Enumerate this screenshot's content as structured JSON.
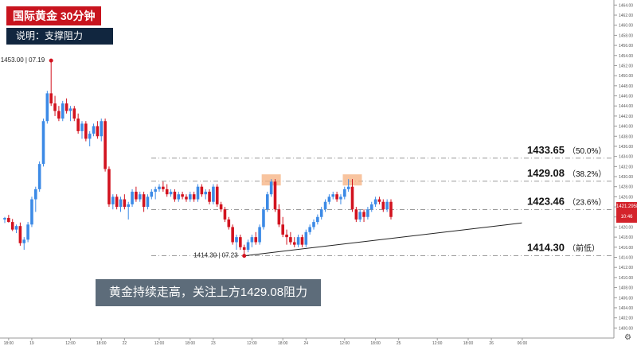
{
  "header": {
    "title": "国际黄金  30分钟",
    "subtitle": "说明：支撑阻力"
  },
  "comment": "黄金持续走高，关注上方1429.08阻力",
  "price_tags": [
    "1421.2958",
    "10:46"
  ],
  "colors": {
    "up": "#3c8ae6",
    "down": "#d2131f",
    "level_line": "#7a7a7a",
    "trend_line": "#222222",
    "highlight": "#f5b07f"
  },
  "chart_data": {
    "type": "candlestick",
    "ylim": [
      1398,
      1465
    ],
    "y_ticks": [
      "1464.00",
      "1462.00",
      "1460.00",
      "1458.00",
      "1456.00",
      "1454.00",
      "1452.00",
      "1450.00",
      "1448.00",
      "1446.00",
      "1444.00",
      "1442.00",
      "1440.00",
      "1438.00",
      "1436.00",
      "1434.00",
      "1432.00",
      "1430.00",
      "1428.00",
      "1426.00",
      "1424.00",
      "1422.00",
      "1420.00",
      "1418.00",
      "1416.00",
      "1414.00",
      "1412.00",
      "1410.00",
      "1408.00",
      "1406.00",
      "1404.00",
      "1402.00",
      "1400.00"
    ],
    "y_tick_values": [
      1464,
      1462,
      1460,
      1458,
      1456,
      1454,
      1452,
      1450,
      1448,
      1446,
      1444,
      1442,
      1440,
      1438,
      1436,
      1434,
      1432,
      1430,
      1428,
      1426,
      1424,
      1422,
      1420,
      1418,
      1416,
      1414,
      1412,
      1410,
      1408,
      1406,
      1404,
      1402,
      1400
    ],
    "x_ticks": [
      "18:00",
      "19",
      "12:00",
      "18:00",
      "22",
      "12:00",
      "18:00",
      "23",
      "12:00",
      "18:00",
      "24",
      "12:00",
      "18:00",
      "25",
      "12:00",
      "18:00",
      "26",
      "06:00"
    ],
    "x_tick_index": [
      1,
      7,
      17,
      25,
      31,
      40,
      48,
      54,
      64,
      72,
      78,
      88,
      96,
      102,
      112,
      120,
      126,
      134
    ],
    "levels": [
      {
        "price": 1433.65,
        "label": "1433.65",
        "pct": "（50.0%）"
      },
      {
        "price": 1429.08,
        "label": "1429.08",
        "pct": "（38.2%）"
      },
      {
        "price": 1423.46,
        "label": "1423.46",
        "pct": "（23.6%）"
      },
      {
        "price": 1414.3,
        "label": "1414.30",
        "pct": "（前低）"
      }
    ],
    "high_marker": {
      "index": 12,
      "price": 1453.0,
      "label": "1453.00 | 07.19"
    },
    "low_marker": {
      "index": 62,
      "price": 1414.3,
      "label": "1414.30 | 07.23"
    },
    "trendline": {
      "from_index": 62,
      "from_price": 1414.3,
      "to_index": 104,
      "to_price": 1420.5
    },
    "highlights": [
      {
        "index": 69,
        "price": 1429.5
      },
      {
        "index": 90,
        "price": 1429.5
      }
    ],
    "candles": [
      [
        1421.5,
        1422.0,
        1420.8,
        1421.8
      ],
      [
        1421.8,
        1422.4,
        1420.9,
        1421.0
      ],
      [
        1421.0,
        1421.6,
        1419.2,
        1419.5
      ],
      [
        1419.5,
        1420.5,
        1418.8,
        1420.2
      ],
      [
        1420.2,
        1420.9,
        1416.3,
        1416.8
      ],
      [
        1416.8,
        1418.0,
        1415.5,
        1417.5
      ],
      [
        1417.5,
        1421.0,
        1417.0,
        1420.5
      ],
      [
        1420.5,
        1426.0,
        1420.0,
        1425.5
      ],
      [
        1425.5,
        1428.0,
        1423.0,
        1427.5
      ],
      [
        1427.5,
        1433.0,
        1427.0,
        1432.5
      ],
      [
        1432.5,
        1441.5,
        1432.0,
        1441.0
      ],
      [
        1441.0,
        1447.0,
        1440.5,
        1446.5
      ],
      [
        1446.5,
        1453.0,
        1444.0,
        1444.5
      ],
      [
        1444.5,
        1446.0,
        1442.0,
        1443.0
      ],
      [
        1443.0,
        1444.0,
        1441.0,
        1441.5
      ],
      [
        1441.5,
        1445.0,
        1441.0,
        1444.5
      ],
      [
        1444.5,
        1445.5,
        1442.5,
        1443.0
      ],
      [
        1443.0,
        1444.0,
        1441.0,
        1443.5
      ],
      [
        1443.5,
        1444.0,
        1441.0,
        1441.5
      ],
      [
        1441.5,
        1442.5,
        1438.5,
        1439.0
      ],
      [
        1439.0,
        1441.0,
        1437.5,
        1440.5
      ],
      [
        1440.5,
        1441.0,
        1437.0,
        1437.5
      ],
      [
        1437.5,
        1439.0,
        1436.0,
        1438.5
      ],
      [
        1438.5,
        1440.5,
        1438.0,
        1440.0
      ],
      [
        1440.0,
        1441.0,
        1437.5,
        1438.0
      ],
      [
        1438.0,
        1441.5,
        1437.0,
        1441.0
      ],
      [
        1441.0,
        1441.5,
        1431.0,
        1431.5
      ],
      [
        1431.5,
        1432.0,
        1424.0,
        1424.5
      ],
      [
        1424.5,
        1426.5,
        1423.5,
        1426.0
      ],
      [
        1426.0,
        1426.5,
        1423.5,
        1424.0
      ],
      [
        1424.0,
        1426.0,
        1423.0,
        1425.5
      ],
      [
        1425.5,
        1426.5,
        1423.5,
        1424.0
      ],
      [
        1424.0,
        1425.0,
        1421.5,
        1424.5
      ],
      [
        1424.5,
        1427.5,
        1424.0,
        1427.0
      ],
      [
        1427.0,
        1428.0,
        1425.0,
        1425.5
      ],
      [
        1425.5,
        1427.0,
        1425.0,
        1426.5
      ],
      [
        1426.5,
        1427.0,
        1423.0,
        1424.0
      ],
      [
        1424.0,
        1426.5,
        1423.5,
        1426.0
      ],
      [
        1426.0,
        1427.5,
        1425.5,
        1427.0
      ],
      [
        1427.0,
        1428.0,
        1425.5,
        1427.5
      ],
      [
        1427.5,
        1428.5,
        1427.0,
        1428.0
      ],
      [
        1428.0,
        1429.0,
        1427.0,
        1427.5
      ],
      [
        1427.5,
        1428.5,
        1426.0,
        1426.5
      ],
      [
        1426.5,
        1427.5,
        1426.0,
        1427.0
      ],
      [
        1427.0,
        1427.5,
        1425.0,
        1425.5
      ],
      [
        1425.5,
        1427.0,
        1425.0,
        1426.5
      ],
      [
        1426.5,
        1427.0,
        1425.5,
        1426.0
      ],
      [
        1426.0,
        1426.5,
        1425.0,
        1425.5
      ],
      [
        1425.5,
        1427.0,
        1425.0,
        1426.5
      ],
      [
        1426.5,
        1427.0,
        1425.0,
        1425.5
      ],
      [
        1425.5,
        1428.5,
        1425.0,
        1428.0
      ],
      [
        1428.0,
        1428.5,
        1426.0,
        1426.5
      ],
      [
        1426.5,
        1427.5,
        1425.5,
        1427.0
      ],
      [
        1427.0,
        1427.5,
        1424.5,
        1425.0
      ],
      [
        1425.0,
        1428.5,
        1424.5,
        1428.0
      ],
      [
        1428.0,
        1428.5,
        1424.0,
        1424.5
      ],
      [
        1424.5,
        1425.0,
        1423.0,
        1423.5
      ],
      [
        1423.5,
        1424.0,
        1421.0,
        1421.5
      ],
      [
        1421.5,
        1422.0,
        1419.5,
        1420.0
      ],
      [
        1420.0,
        1420.5,
        1416.5,
        1417.0
      ],
      [
        1417.0,
        1418.5,
        1415.5,
        1418.0
      ],
      [
        1418.0,
        1418.5,
        1415.5,
        1416.0
      ],
      [
        1416.0,
        1416.5,
        1414.3,
        1415.5
      ],
      [
        1415.5,
        1417.5,
        1415.0,
        1417.0
      ],
      [
        1417.0,
        1418.5,
        1416.0,
        1418.0
      ],
      [
        1418.0,
        1419.0,
        1416.5,
        1417.0
      ],
      [
        1417.0,
        1420.5,
        1416.5,
        1420.0
      ],
      [
        1420.0,
        1424.0,
        1419.5,
        1423.5
      ],
      [
        1423.5,
        1427.0,
        1423.0,
        1426.5
      ],
      [
        1426.5,
        1429.5,
        1426.0,
        1429.0
      ],
      [
        1429.0,
        1429.5,
        1423.0,
        1423.5
      ],
      [
        1423.5,
        1424.5,
        1420.0,
        1420.5
      ],
      [
        1420.5,
        1422.0,
        1418.0,
        1418.5
      ],
      [
        1418.5,
        1419.5,
        1416.5,
        1418.0
      ],
      [
        1418.0,
        1419.0,
        1416.5,
        1417.0
      ],
      [
        1417.0,
        1418.0,
        1416.0,
        1416.5
      ],
      [
        1416.5,
        1418.5,
        1416.0,
        1418.0
      ],
      [
        1418.0,
        1418.5,
        1416.0,
        1416.5
      ],
      [
        1416.5,
        1419.5,
        1416.0,
        1419.0
      ],
      [
        1419.0,
        1420.5,
        1418.5,
        1420.0
      ],
      [
        1420.0,
        1421.5,
        1419.5,
        1421.0
      ],
      [
        1421.0,
        1422.5,
        1420.5,
        1422.0
      ],
      [
        1422.0,
        1424.0,
        1421.5,
        1423.5
      ],
      [
        1423.5,
        1425.5,
        1423.0,
        1425.0
      ],
      [
        1425.0,
        1426.5,
        1424.5,
        1426.0
      ],
      [
        1426.0,
        1427.0,
        1425.5,
        1426.5
      ],
      [
        1426.5,
        1427.0,
        1425.0,
        1425.5
      ],
      [
        1425.5,
        1426.5,
        1424.5,
        1426.0
      ],
      [
        1426.0,
        1428.0,
        1425.5,
        1427.5
      ],
      [
        1427.5,
        1429.5,
        1427.0,
        1428.0
      ],
      [
        1428.0,
        1429.5,
        1423.0,
        1423.5
      ],
      [
        1423.5,
        1424.0,
        1421.0,
        1421.5
      ],
      [
        1421.5,
        1423.5,
        1421.0,
        1423.0
      ],
      [
        1423.0,
        1423.5,
        1421.0,
        1422.0
      ],
      [
        1422.0,
        1424.0,
        1421.5,
        1423.5
      ],
      [
        1423.5,
        1425.0,
        1423.0,
        1424.5
      ],
      [
        1424.5,
        1426.0,
        1424.0,
        1425.5
      ],
      [
        1425.5,
        1426.0,
        1424.5,
        1425.0
      ],
      [
        1425.0,
        1425.5,
        1423.0,
        1423.5
      ],
      [
        1423.5,
        1425.5,
        1423.0,
        1425.0
      ],
      [
        1425.0,
        1425.5,
        1421.5,
        1422.0
      ]
    ]
  }
}
